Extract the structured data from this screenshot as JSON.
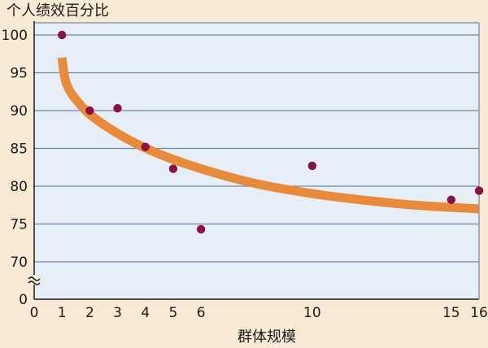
{
  "chart_data": {
    "type": "scatter",
    "title": "",
    "ylabel": "个人绩效百分比",
    "xlabel": "群体规模",
    "xlim": [
      0,
      16
    ],
    "ylim": [
      70,
      100
    ],
    "y_axis_break": true,
    "y_zero_label": "0",
    "x_ticks": [
      0,
      1,
      2,
      3,
      4,
      5,
      6,
      10,
      15,
      16
    ],
    "y_ticks": [
      70,
      75,
      80,
      85,
      90,
      95,
      100
    ],
    "grid": "horizontal",
    "points": [
      {
        "x": 1,
        "y": 100
      },
      {
        "x": 2,
        "y": 90
      },
      {
        "x": 3,
        "y": 90.3
      },
      {
        "x": 4,
        "y": 85.2
      },
      {
        "x": 5,
        "y": 82.3
      },
      {
        "x": 6,
        "y": 74.3
      },
      {
        "x": 10,
        "y": 82.7
      },
      {
        "x": 15,
        "y": 78.2
      },
      {
        "x": 16,
        "y": 79.4
      }
    ],
    "trend_curve": [
      {
        "x": 1,
        "y": 97
      },
      {
        "x": 1.1,
        "y": 94
      },
      {
        "x": 1.3,
        "y": 92.4
      },
      {
        "x": 1.6,
        "y": 91
      },
      {
        "x": 2,
        "y": 89.4
      },
      {
        "x": 3,
        "y": 86.9
      },
      {
        "x": 4,
        "y": 85
      },
      {
        "x": 5,
        "y": 83.5
      },
      {
        "x": 6,
        "y": 82.3
      },
      {
        "x": 7,
        "y": 81.2
      },
      {
        "x": 8,
        "y": 80.3
      },
      {
        "x": 9,
        "y": 79.6
      },
      {
        "x": 10,
        "y": 79
      },
      {
        "x": 11,
        "y": 78.5
      },
      {
        "x": 12,
        "y": 78.1
      },
      {
        "x": 13,
        "y": 77.7
      },
      {
        "x": 14,
        "y": 77.4
      },
      {
        "x": 15,
        "y": 77.2
      },
      {
        "x": 16,
        "y": 77
      }
    ],
    "colors": {
      "plot_background": "#e6eef7",
      "page_background": "#f8ead4",
      "grid": "#6f86a8",
      "point": "#8c1140",
      "curve": "#e9893a",
      "axis": "#1a1a1a"
    }
  }
}
